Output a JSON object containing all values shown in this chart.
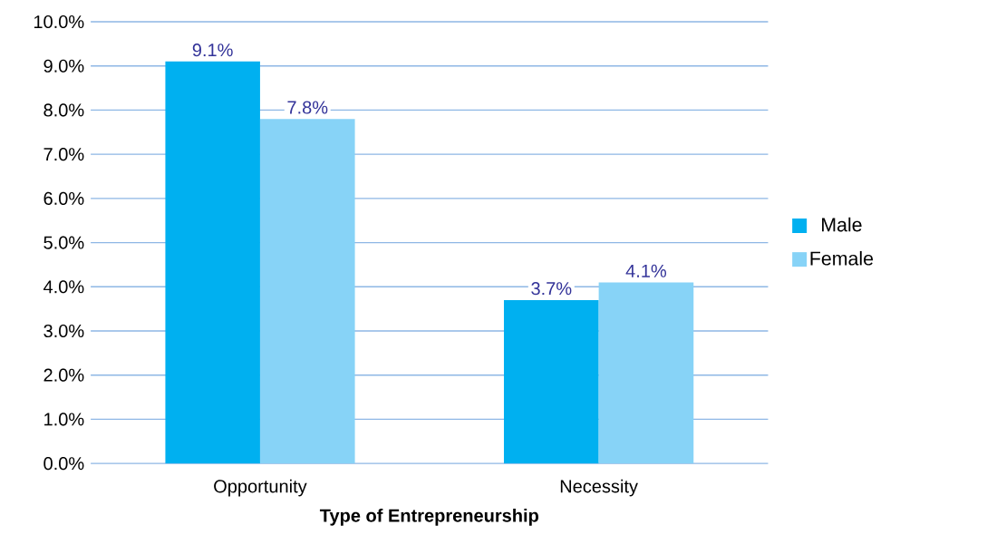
{
  "chart_data": {
    "type": "bar",
    "xlabel": "Type of Entrepreneurship",
    "categories": [
      "Opportunity",
      "Necessity"
    ],
    "series": [
      {
        "name": "Male",
        "color": "#00b0f0",
        "values": [
          9.1,
          3.7
        ],
        "value_labels": [
          "9.1%",
          "3.7%"
        ]
      },
      {
        "name": "Female",
        "color": "#87d3f7",
        "values": [
          7.8,
          4.1
        ],
        "value_labels": [
          "7.8%",
          "4.1%"
        ]
      }
    ],
    "ylim": [
      0,
      10
    ],
    "yticks": [
      {
        "value": 0,
        "label": "0.0%"
      },
      {
        "value": 1,
        "label": "1.0%"
      },
      {
        "value": 2,
        "label": "2.0%"
      },
      {
        "value": 3,
        "label": "3.0%"
      },
      {
        "value": 4,
        "label": "4.0%"
      },
      {
        "value": 5,
        "label": "5.0%"
      },
      {
        "value": 6,
        "label": "6.0%"
      },
      {
        "value": 7,
        "label": "7.0%"
      },
      {
        "value": 8,
        "label": "8.0%"
      },
      {
        "value": 9,
        "label": "9.0%"
      },
      {
        "value": 10,
        "label": "10.0%"
      }
    ],
    "grid": "y",
    "legend": "right"
  }
}
